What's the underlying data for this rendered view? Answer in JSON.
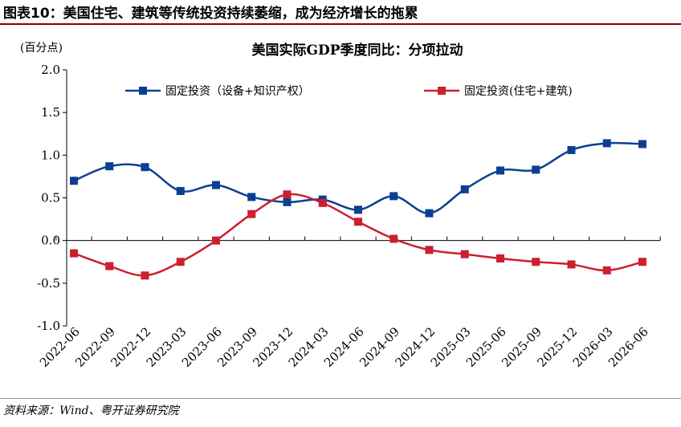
{
  "figure": {
    "title": "图表10：美国住宅、建筑等传统投资持续萎缩，成为经济增长的拖累",
    "source": "资料来源：Wind、粤开证券研究院"
  },
  "chart_data": {
    "type": "line",
    "title": "美国实际GDP季度同比：分项拉动",
    "ylabel": "(百分点)",
    "xlabel": "",
    "ylim": [
      -1.0,
      2.0
    ],
    "yticks": [
      "2.0",
      "1.5",
      "1.0",
      "0.5",
      "0.0",
      "-0.5",
      "-1.0"
    ],
    "ytick_values": [
      2.0,
      1.5,
      1.0,
      0.5,
      0.0,
      -0.5,
      -1.0
    ],
    "categories": [
      "2022-06",
      "2022-09",
      "2022-12",
      "2023-03",
      "2023-06",
      "2023-09",
      "2023-12",
      "2024-03",
      "2024-06",
      "2024-09",
      "2024-12",
      "2025-03",
      "2025-06",
      "2025-09",
      "2025-12",
      "2026-03",
      "2026-06"
    ],
    "grid": false,
    "legend_position": "top",
    "series": [
      {
        "name": "固定投资（设备+知识产权）",
        "color": "#0b3f91",
        "marker": "square",
        "values": [
          0.7,
          0.87,
          0.86,
          0.58,
          0.65,
          0.51,
          0.45,
          0.48,
          0.36,
          0.52,
          0.32,
          0.6,
          0.82,
          0.83,
          1.06,
          1.14,
          1.13
        ]
      },
      {
        "name": "固定投资(住宅+建筑)",
        "color": "#cc1f2f",
        "marker": "square",
        "values": [
          -0.15,
          -0.3,
          -0.41,
          -0.25,
          0.0,
          0.31,
          0.54,
          0.44,
          0.22,
          0.02,
          -0.11,
          -0.16,
          -0.21,
          -0.25,
          -0.28,
          -0.35,
          -0.25
        ]
      }
    ]
  }
}
